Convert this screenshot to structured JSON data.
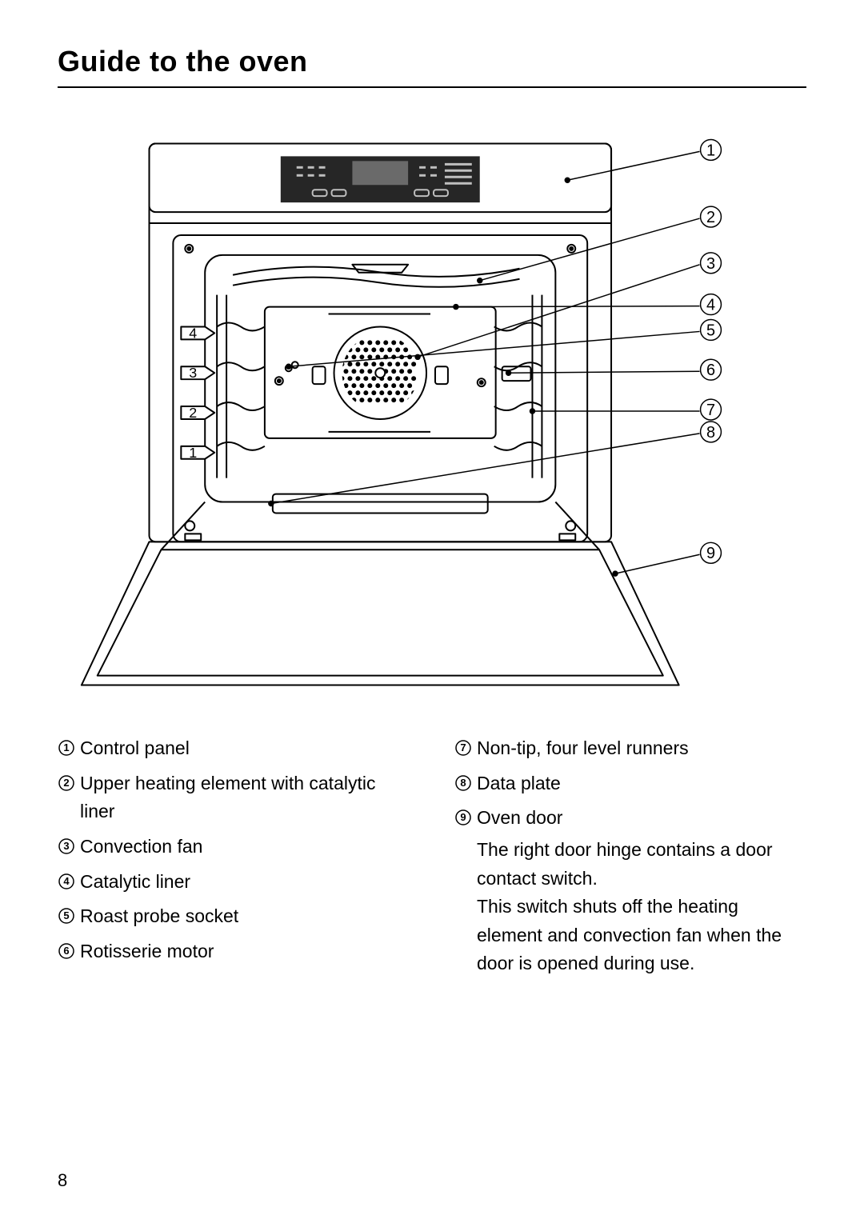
{
  "title": "Guide to the oven",
  "page_number": "8",
  "callout_labels": [
    "1",
    "2",
    "3",
    "4",
    "5",
    "6",
    "7",
    "8",
    "9"
  ],
  "rack_labels": [
    "4",
    "3",
    "2",
    "1"
  ],
  "legend_left": [
    {
      "num": "1",
      "label": "Control panel"
    },
    {
      "num": "2",
      "label": "Upper heating element with catalytic liner"
    },
    {
      "num": "3",
      "label": "Convection fan"
    },
    {
      "num": "4",
      "label": "Catalytic liner"
    },
    {
      "num": "5",
      "label": "Roast probe socket"
    },
    {
      "num": "6",
      "label": "Rotisserie motor"
    }
  ],
  "legend_right": [
    {
      "num": "7",
      "label": "Non-tip, four level runners"
    },
    {
      "num": "8",
      "label": "Data plate"
    },
    {
      "num": "9",
      "label": "Oven door",
      "extra": "The right door hinge contains a door contact switch.\nThis switch shuts off the heating element and convection fan when the door is opened during use."
    }
  ],
  "colors": {
    "stroke": "#000000",
    "bg": "#ffffff",
    "panel": "#2b2b2b",
    "screen": "#6b6b6b"
  }
}
